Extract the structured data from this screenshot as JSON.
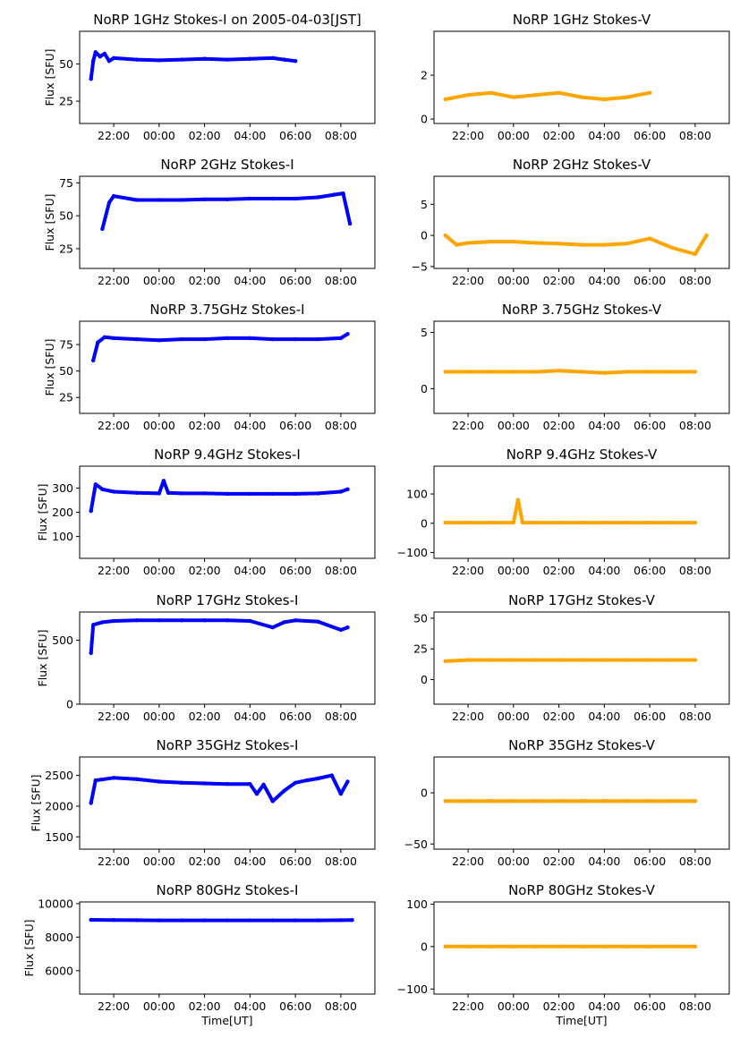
{
  "colors": {
    "stokes_i": "#0000ff",
    "stokes_v": "#ffa500"
  },
  "chart_data": [
    {
      "type": "scatter",
      "title": "NoRP 1GHz Stokes-I on 2005-04-03[JST]",
      "ylabel": "Flux [SFU]",
      "xlabel": "",
      "xlim": [
        20.5,
        33.5
      ],
      "ylim": [
        10,
        72
      ],
      "yticks": [
        25,
        50
      ],
      "yticklabels": [
        "25",
        "50"
      ],
      "xticks": [
        22,
        24,
        26,
        28,
        30,
        32
      ],
      "xticklabels": [
        "22:00",
        "00:00",
        "02:00",
        "04:00",
        "06:00",
        "08:00"
      ],
      "color": "stokes_i",
      "series": [
        {
          "x": [
            21,
            21.1,
            21.2,
            21.4,
            21.6,
            21.8,
            22,
            23,
            24,
            25,
            26,
            27,
            28,
            29,
            29.5,
            30
          ],
          "y": [
            40,
            52,
            58,
            55,
            57,
            52,
            54,
            53,
            52.5,
            53,
            53.5,
            53,
            53.5,
            54,
            53,
            52
          ]
        }
      ]
    },
    {
      "type": "scatter",
      "title": "NoRP 1GHz Stokes-V",
      "ylabel": "",
      "xlabel": "",
      "xlim": [
        20.5,
        33.5
      ],
      "ylim": [
        -0.2,
        4.0
      ],
      "yticks": [
        0,
        2
      ],
      "yticklabels": [
        "0",
        "2"
      ],
      "xticks": [
        22,
        24,
        26,
        28,
        30,
        32
      ],
      "xticklabels": [
        "22:00",
        "00:00",
        "02:00",
        "04:00",
        "06:00",
        "08:00"
      ],
      "color": "stokes_v",
      "series": [
        {
          "x": [
            21,
            22,
            23,
            24,
            25,
            26,
            27,
            28,
            29,
            30
          ],
          "y": [
            0.9,
            1.1,
            1.2,
            1.0,
            1.1,
            1.2,
            1.0,
            0.9,
            1.0,
            1.2
          ]
        }
      ]
    },
    {
      "type": "scatter",
      "title": "NoRP 2GHz Stokes-I",
      "ylabel": "Flux [SFU]",
      "xlabel": "",
      "xlim": [
        20.5,
        33.5
      ],
      "ylim": [
        10,
        80
      ],
      "yticks": [
        25,
        50,
        75
      ],
      "yticklabels": [
        "25",
        "50",
        "75"
      ],
      "xticks": [
        22,
        24,
        26,
        28,
        30,
        32
      ],
      "xticklabels": [
        "22:00",
        "00:00",
        "02:00",
        "04:00",
        "06:00",
        "08:00"
      ],
      "color": "stokes_i",
      "series": [
        {
          "x": [
            21.5,
            21.8,
            22,
            23,
            24,
            25,
            26,
            27,
            28,
            29,
            30,
            31,
            31.7,
            32.1,
            32.4
          ],
          "y": [
            40,
            60,
            65,
            62,
            62,
            62,
            62.5,
            62.5,
            63,
            63,
            63,
            64,
            66,
            67,
            44
          ]
        }
      ]
    },
    {
      "type": "scatter",
      "title": "NoRP 2GHz Stokes-V",
      "ylabel": "",
      "xlabel": "",
      "xlim": [
        20.5,
        33.5
      ],
      "ylim": [
        -5.3,
        9.5
      ],
      "yticks": [
        -5,
        0,
        5
      ],
      "yticklabels": [
        "−5",
        "0",
        "5"
      ],
      "xticks": [
        22,
        24,
        26,
        28,
        30,
        32
      ],
      "xticklabels": [
        "22:00",
        "00:00",
        "02:00",
        "04:00",
        "06:00",
        "08:00"
      ],
      "color": "stokes_v",
      "series": [
        {
          "x": [
            21,
            21.5,
            22,
            23,
            24,
            25,
            26,
            27,
            28,
            29,
            30,
            31,
            32,
            32.5
          ],
          "y": [
            0,
            -1.5,
            -1.2,
            -1.0,
            -1.0,
            -1.2,
            -1.3,
            -1.5,
            -1.5,
            -1.3,
            -0.5,
            -2.0,
            -3.0,
            0
          ]
        }
      ]
    },
    {
      "type": "scatter",
      "title": "NoRP 3.75GHz Stokes-I",
      "ylabel": "Flux [SFU]",
      "xlabel": "",
      "xlim": [
        20.5,
        33.5
      ],
      "ylim": [
        10,
        97
      ],
      "yticks": [
        25,
        50,
        75
      ],
      "yticklabels": [
        "25",
        "50",
        "75"
      ],
      "xticks": [
        22,
        24,
        26,
        28,
        30,
        32
      ],
      "xticklabels": [
        "22:00",
        "00:00",
        "02:00",
        "04:00",
        "06:00",
        "08:00"
      ],
      "color": "stokes_i",
      "series": [
        {
          "x": [
            21.1,
            21.3,
            21.6,
            22,
            23,
            24,
            25,
            26,
            27,
            28,
            29,
            30,
            31,
            32,
            32.3
          ],
          "y": [
            60,
            77,
            82,
            81,
            80,
            79,
            80,
            80,
            81,
            81,
            80,
            80,
            80,
            81,
            85
          ]
        }
      ]
    },
    {
      "type": "scatter",
      "title": "NoRP 3.75GHz Stokes-V",
      "ylabel": "",
      "xlabel": "",
      "xlim": [
        20.5,
        33.5
      ],
      "ylim": [
        -2.2,
        6.0
      ],
      "yticks": [
        0,
        5
      ],
      "yticklabels": [
        "0",
        "5"
      ],
      "xticks": [
        22,
        24,
        26,
        28,
        30,
        32
      ],
      "xticklabels": [
        "22:00",
        "00:00",
        "02:00",
        "04:00",
        "06:00",
        "08:00"
      ],
      "color": "stokes_v",
      "series": [
        {
          "x": [
            21,
            22,
            23,
            24,
            25,
            26,
            27,
            28,
            29,
            30,
            31,
            32
          ],
          "y": [
            1.5,
            1.5,
            1.5,
            1.5,
            1.5,
            1.6,
            1.5,
            1.4,
            1.5,
            1.5,
            1.5,
            1.5
          ]
        }
      ]
    },
    {
      "type": "scatter",
      "title": "NoRP 9.4GHz Stokes-I",
      "ylabel": "Flux [SFU]",
      "xlabel": "",
      "xlim": [
        20.5,
        33.5
      ],
      "ylim": [
        10,
        390
      ],
      "yticks": [
        100,
        200,
        300
      ],
      "yticklabels": [
        "100",
        "200",
        "300"
      ],
      "xticks": [
        22,
        24,
        26,
        28,
        30,
        32
      ],
      "xticklabels": [
        "22:00",
        "00:00",
        "02:00",
        "04:00",
        "06:00",
        "08:00"
      ],
      "color": "stokes_i",
      "series": [
        {
          "x": [
            21,
            21.2,
            21.5,
            22,
            23,
            24,
            24.2,
            24.4,
            25,
            26,
            27,
            28,
            29,
            30,
            31,
            32,
            32.3
          ],
          "y": [
            205,
            315,
            295,
            285,
            280,
            278,
            330,
            280,
            278,
            278,
            276,
            276,
            276,
            276,
            278,
            285,
            295
          ]
        }
      ]
    },
    {
      "type": "scatter",
      "title": "NoRP 9.4GHz Stokes-V",
      "ylabel": "",
      "xlabel": "",
      "xlim": [
        20.5,
        33.5
      ],
      "ylim": [
        -120,
        195
      ],
      "yticks": [
        -100,
        0,
        100
      ],
      "yticklabels": [
        "−100",
        "0",
        "100"
      ],
      "xticks": [
        22,
        24,
        26,
        28,
        30,
        32
      ],
      "xticklabels": [
        "22:00",
        "00:00",
        "02:00",
        "04:00",
        "06:00",
        "08:00"
      ],
      "color": "stokes_v",
      "series": [
        {
          "x": [
            21,
            22,
            23,
            24,
            24.2,
            24.4,
            25,
            26,
            27,
            28,
            29,
            30,
            31,
            32
          ],
          "y": [
            2,
            2,
            2,
            2,
            80,
            2,
            2,
            2,
            2,
            2,
            2,
            2,
            2,
            2
          ]
        }
      ]
    },
    {
      "type": "scatter",
      "title": "NoRP 17GHz Stokes-I",
      "ylabel": "Flux [SFU]",
      "xlabel": "",
      "xlim": [
        20.5,
        33.5
      ],
      "ylim": [
        0,
        720
      ],
      "yticks": [
        0,
        500
      ],
      "yticklabels": [
        "0",
        "500"
      ],
      "xticks": [
        22,
        24,
        26,
        28,
        30,
        32
      ],
      "xticklabels": [
        "22:00",
        "00:00",
        "02:00",
        "04:00",
        "06:00",
        "08:00"
      ],
      "color": "stokes_i",
      "series": [
        {
          "x": [
            21,
            21.1,
            21.5,
            22,
            23,
            24,
            25,
            26,
            27,
            28,
            29,
            29.5,
            30,
            31,
            32,
            32.3
          ],
          "y": [
            400,
            620,
            640,
            650,
            655,
            655,
            655,
            655,
            655,
            650,
            600,
            640,
            655,
            645,
            580,
            600
          ]
        }
      ]
    },
    {
      "type": "scatter",
      "title": "NoRP 17GHz Stokes-V",
      "ylabel": "",
      "xlabel": "",
      "xlim": [
        20.5,
        33.5
      ],
      "ylim": [
        -20,
        55
      ],
      "yticks": [
        0,
        25,
        50
      ],
      "yticklabels": [
        "0",
        "25",
        "50"
      ],
      "xticks": [
        22,
        24,
        26,
        28,
        30,
        32
      ],
      "xticklabels": [
        "22:00",
        "00:00",
        "02:00",
        "04:00",
        "06:00",
        "08:00"
      ],
      "color": "stokes_v",
      "series": [
        {
          "x": [
            21,
            22,
            23,
            24,
            25,
            26,
            27,
            28,
            29,
            30,
            31,
            32
          ],
          "y": [
            15,
            16,
            16,
            16,
            16,
            16,
            16,
            16,
            16,
            16,
            16,
            16
          ]
        }
      ]
    },
    {
      "type": "scatter",
      "title": "NoRP 35GHz Stokes-I",
      "ylabel": "Flux [SFU]",
      "xlabel": "",
      "xlim": [
        20.5,
        33.5
      ],
      "ylim": [
        1300,
        2800
      ],
      "yticks": [
        1500,
        2000,
        2500
      ],
      "yticklabels": [
        "1500",
        "2000",
        "2500"
      ],
      "xticks": [
        22,
        24,
        26,
        28,
        30,
        32
      ],
      "xticklabels": [
        "22:00",
        "00:00",
        "02:00",
        "04:00",
        "06:00",
        "08:00"
      ],
      "color": "stokes_i",
      "series": [
        {
          "x": [
            21,
            21.2,
            22,
            23,
            24,
            25,
            26,
            27,
            28,
            28.3,
            28.6,
            29,
            29.5,
            30,
            30.5,
            31,
            31.6,
            32,
            32.3
          ],
          "y": [
            2050,
            2420,
            2460,
            2440,
            2400,
            2380,
            2370,
            2360,
            2360,
            2200,
            2350,
            2080,
            2250,
            2380,
            2420,
            2450,
            2500,
            2200,
            2400
          ]
        }
      ]
    },
    {
      "type": "scatter",
      "title": "NoRP 35GHz Stokes-V",
      "ylabel": "",
      "xlabel": "",
      "xlim": [
        20.5,
        33.5
      ],
      "ylim": [
        -55,
        35
      ],
      "yticks": [
        -50,
        0
      ],
      "yticklabels": [
        "−50",
        "0"
      ],
      "xticks": [
        22,
        24,
        26,
        28,
        30,
        32
      ],
      "xticklabels": [
        "22:00",
        "00:00",
        "02:00",
        "04:00",
        "06:00",
        "08:00"
      ],
      "color": "stokes_v",
      "series": [
        {
          "x": [
            21,
            22,
            23,
            24,
            25,
            26,
            27,
            28,
            29,
            30,
            31,
            32
          ],
          "y": [
            -8,
            -8,
            -8,
            -8,
            -8,
            -8,
            -8,
            -8,
            -8,
            -8,
            -8,
            -8
          ]
        }
      ]
    },
    {
      "type": "scatter",
      "title": "NoRP 80GHz Stokes-I",
      "ylabel": "Flux [SFU]",
      "xlabel": "Time[UT]",
      "xlim": [
        20.5,
        33.5
      ],
      "ylim": [
        4600,
        10100
      ],
      "yticks": [
        6000,
        8000,
        10000
      ],
      "yticklabels": [
        "6000",
        "8000",
        "10000"
      ],
      "xticks": [
        22,
        24,
        26,
        28,
        30,
        32
      ],
      "xticklabels": [
        "22:00",
        "00:00",
        "02:00",
        "04:00",
        "06:00",
        "08:00"
      ],
      "color": "stokes_i",
      "series": [
        {
          "x": [
            21,
            22,
            23,
            24,
            25,
            26,
            27,
            28,
            29,
            30,
            31,
            32,
            32.5
          ],
          "y": [
            9030,
            9020,
            9010,
            9000,
            9000,
            9000,
            9000,
            9000,
            9000,
            9000,
            9000,
            9010,
            9020
          ]
        }
      ]
    },
    {
      "type": "scatter",
      "title": "NoRP 80GHz Stokes-V",
      "ylabel": "",
      "xlabel": "Time[UT]",
      "xlim": [
        20.5,
        33.5
      ],
      "ylim": [
        -112,
        105
      ],
      "yticks": [
        -100,
        0,
        100
      ],
      "yticklabels": [
        "−100",
        "0",
        "100"
      ],
      "xticks": [
        22,
        24,
        26,
        28,
        30,
        32
      ],
      "xticklabels": [
        "22:00",
        "00:00",
        "02:00",
        "04:00",
        "06:00",
        "08:00"
      ],
      "color": "stokes_v",
      "series": [
        {
          "x": [
            21,
            22,
            23,
            24,
            25,
            26,
            27,
            28,
            29,
            30,
            31,
            32
          ],
          "y": [
            0,
            0,
            0,
            0,
            0,
            0,
            0,
            0,
            0,
            0,
            0,
            0
          ]
        }
      ]
    }
  ]
}
